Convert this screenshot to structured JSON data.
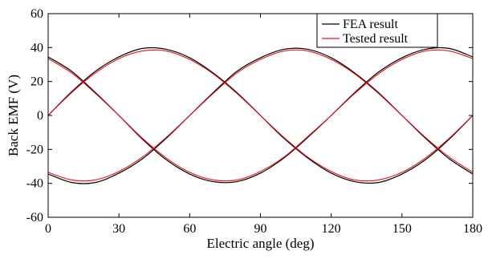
{
  "chart_data": {
    "type": "line",
    "title": "",
    "xlabel": "Electric angle (deg)",
    "ylabel": "Back EMF (V)",
    "xlim": [
      0,
      180
    ],
    "ylim": [
      -60,
      60
    ],
    "xticks": [
      0,
      30,
      60,
      90,
      120,
      150,
      180
    ],
    "yticks": [
      -60,
      -40,
      -20,
      0,
      20,
      40,
      60
    ],
    "grid": false,
    "legend_position": "top-right",
    "x": [
      0,
      10,
      20,
      30,
      40,
      50,
      60,
      70,
      80,
      90,
      100,
      110,
      120,
      130,
      140,
      150,
      160,
      170,
      180
    ],
    "series": [
      {
        "name": "FEA result",
        "color": "#000000",
        "phases": [
          {
            "values": [
              0,
              14,
              26,
              34.5,
              39.5,
              39,
              34,
              25,
              13.5,
              0,
              -13.5,
              -25,
              -34,
              -39,
              -39.5,
              -34.5,
              -26,
              -14,
              0
            ]
          },
          {
            "values": [
              34.5,
              26,
              13.5,
              0,
              -14,
              -26,
              -34.5,
              -39,
              -39,
              -34,
              -25,
              -13,
              0,
              13.5,
              25.5,
              34,
              39,
              39.5,
              34.5
            ]
          },
          {
            "values": [
              -34.5,
              -39.5,
              -39.5,
              -34,
              -25.5,
              -13.5,
              0,
              13.5,
              26,
              34,
              39,
              39,
              34,
              25,
              13.5,
              0,
              -13.5,
              -25.5,
              -34.5
            ]
          }
        ]
      },
      {
        "name": "Tested result",
        "color": "#e8101a",
        "phases": [
          {
            "values": [
              0,
              13.5,
              25,
              33.5,
              38,
              38,
              33,
              24.5,
              13,
              0,
              -13,
              -24.5,
              -33,
              -38,
              -38,
              -33.5,
              -25,
              -13.5,
              0
            ]
          },
          {
            "values": [
              33.5,
              25,
              13,
              0,
              -13.5,
              -25,
              -33.5,
              -38,
              -38,
              -33,
              -24.5,
              -12.5,
              0,
              13,
              24.5,
              33,
              38,
              38,
              33.5
            ]
          },
          {
            "values": [
              -33.5,
              -38,
              -38,
              -33,
              -24.5,
              -13,
              0,
              13,
              25,
              33,
              38,
              38,
              33,
              24.5,
              13,
              0,
              -13,
              -24.5,
              -33.5
            ]
          }
        ]
      }
    ]
  }
}
